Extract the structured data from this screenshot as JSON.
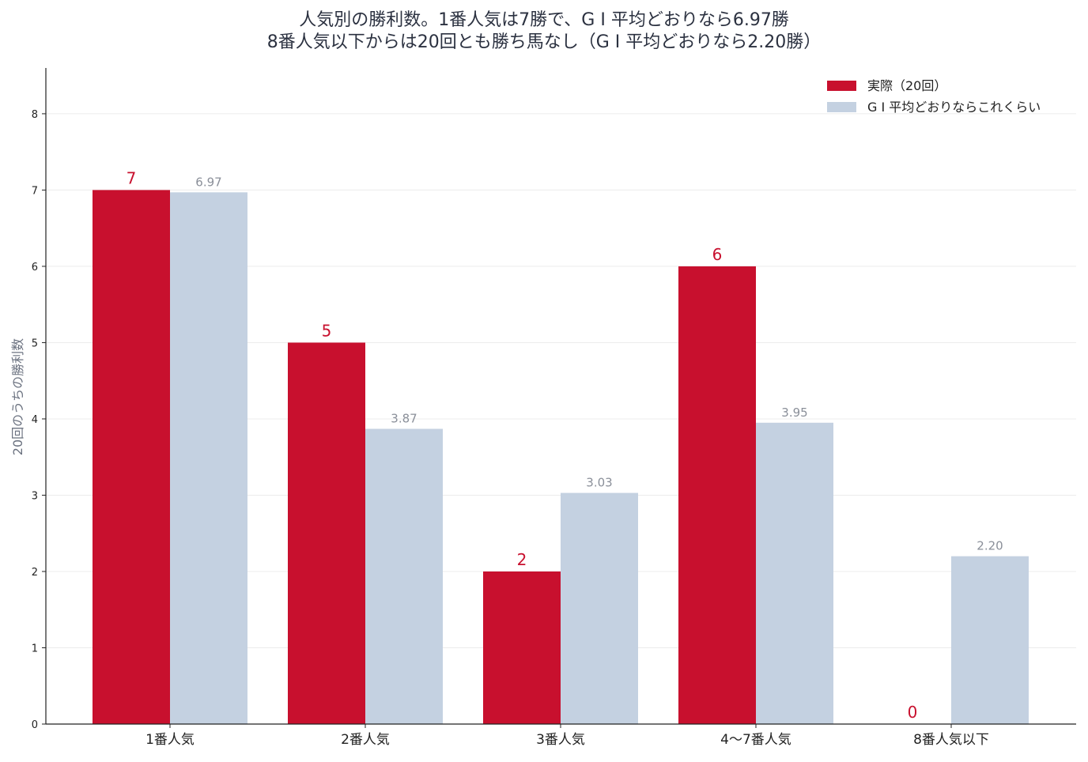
{
  "chart_data": {
    "type": "bar",
    "title_lines": [
      "人気別の勝利数。1番人気は7勝で、G I 平均どおりなら6.97勝",
      "8番人気以下からは20回とも勝ち馬なし（G I 平均どおりなら2.20勝）"
    ],
    "xlabel": "",
    "ylabel": "20回のうちの勝利数",
    "ylim": [
      0,
      8.6
    ],
    "yticks": [
      0,
      1,
      2,
      3,
      4,
      5,
      6,
      7,
      8
    ],
    "grid": "horizontal",
    "legend_position": "top-right",
    "categories": [
      "1番人気",
      "2番人気",
      "3番人気",
      "4〜7番人気",
      "8番人気以下"
    ],
    "series": [
      {
        "name": "実際（20回）",
        "color": "#c8102e",
        "values": [
          7,
          5,
          2,
          6,
          0
        ],
        "value_labels": [
          "7",
          "5",
          "2",
          "6",
          "0"
        ]
      },
      {
        "name": "G I 平均どおりならこれくらい",
        "color": "#c4d1e1",
        "values": [
          6.97,
          3.87,
          3.03,
          3.95,
          2.2
        ],
        "value_labels": [
          "6.97",
          "3.87",
          "3.03",
          "3.95",
          "2.20"
        ]
      }
    ],
    "label_colors": {
      "actual": "#c8102e",
      "expected": "#8a8f99"
    }
  }
}
